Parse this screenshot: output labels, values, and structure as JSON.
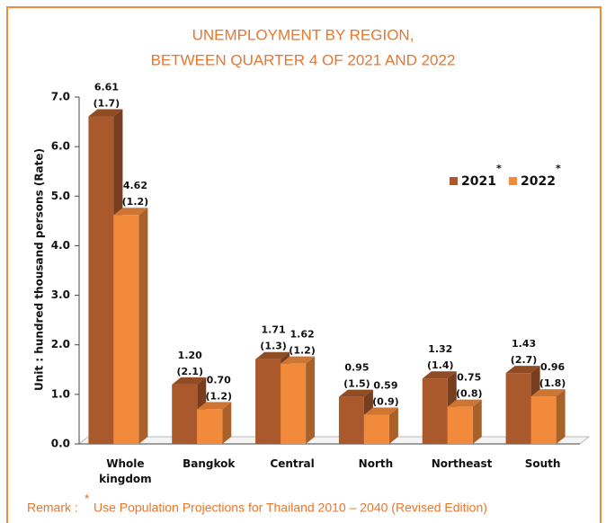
{
  "chart_data": {
    "type": "bar",
    "title": [
      "UNEMPLOYMENT BY REGION,",
      "BETWEEN QUARTER 4 OF 2021 AND 2022"
    ],
    "y_label": "Unit : hundred thousand persons (Rate)",
    "categories": [
      "Whole kingdom",
      "Bangkok",
      "Central",
      "North",
      "Northeast",
      "South"
    ],
    "series": [
      {
        "name": "2021",
        "color": "#a9592b",
        "values": [
          6.61,
          1.2,
          1.71,
          0.95,
          1.32,
          1.43
        ],
        "value_labels": [
          "6.61",
          "1.20",
          "1.71",
          "0.95",
          "1.32",
          "1.43"
        ],
        "rates": [
          1.7,
          2.1,
          1.3,
          1.5,
          1.4,
          2.7
        ],
        "rate_labels": [
          "(1.7)",
          "(2.1)",
          "(1.3)",
          "(1.5)",
          "(1.4)",
          "(2.7)"
        ]
      },
      {
        "name": "2022",
        "color": "#f28a3c",
        "values": [
          4.62,
          0.7,
          1.62,
          0.59,
          0.75,
          0.96
        ],
        "value_labels": [
          "4.62",
          "0.70",
          "1.62",
          "0.59",
          "0.75",
          "0.96"
        ],
        "rates": [
          1.2,
          1.2,
          1.2,
          0.9,
          0.8,
          1.8
        ],
        "rate_labels": [
          "(1.2)",
          "(1.2)",
          "(1.2)",
          "(0.9)",
          "(0.8)",
          "(1.8)"
        ]
      }
    ],
    "ylim": [
      0,
      7
    ],
    "yticks": [
      {
        "value": 0,
        "label": "0.0"
      },
      {
        "value": 1,
        "label": "1.0"
      },
      {
        "value": 2,
        "label": "2.0"
      },
      {
        "value": 3,
        "label": "3.0"
      },
      {
        "value": 4,
        "label": "4.0"
      },
      {
        "value": 5,
        "label": "5.0"
      },
      {
        "value": 6,
        "label": "6.0"
      },
      {
        "value": 7,
        "label": "7.0"
      }
    ],
    "grid": false,
    "note_marker": "*",
    "remark_label": "Remark :",
    "remark": "Use Population Projections for Thailand 2010 – 2040 (Revised Edition)"
  }
}
